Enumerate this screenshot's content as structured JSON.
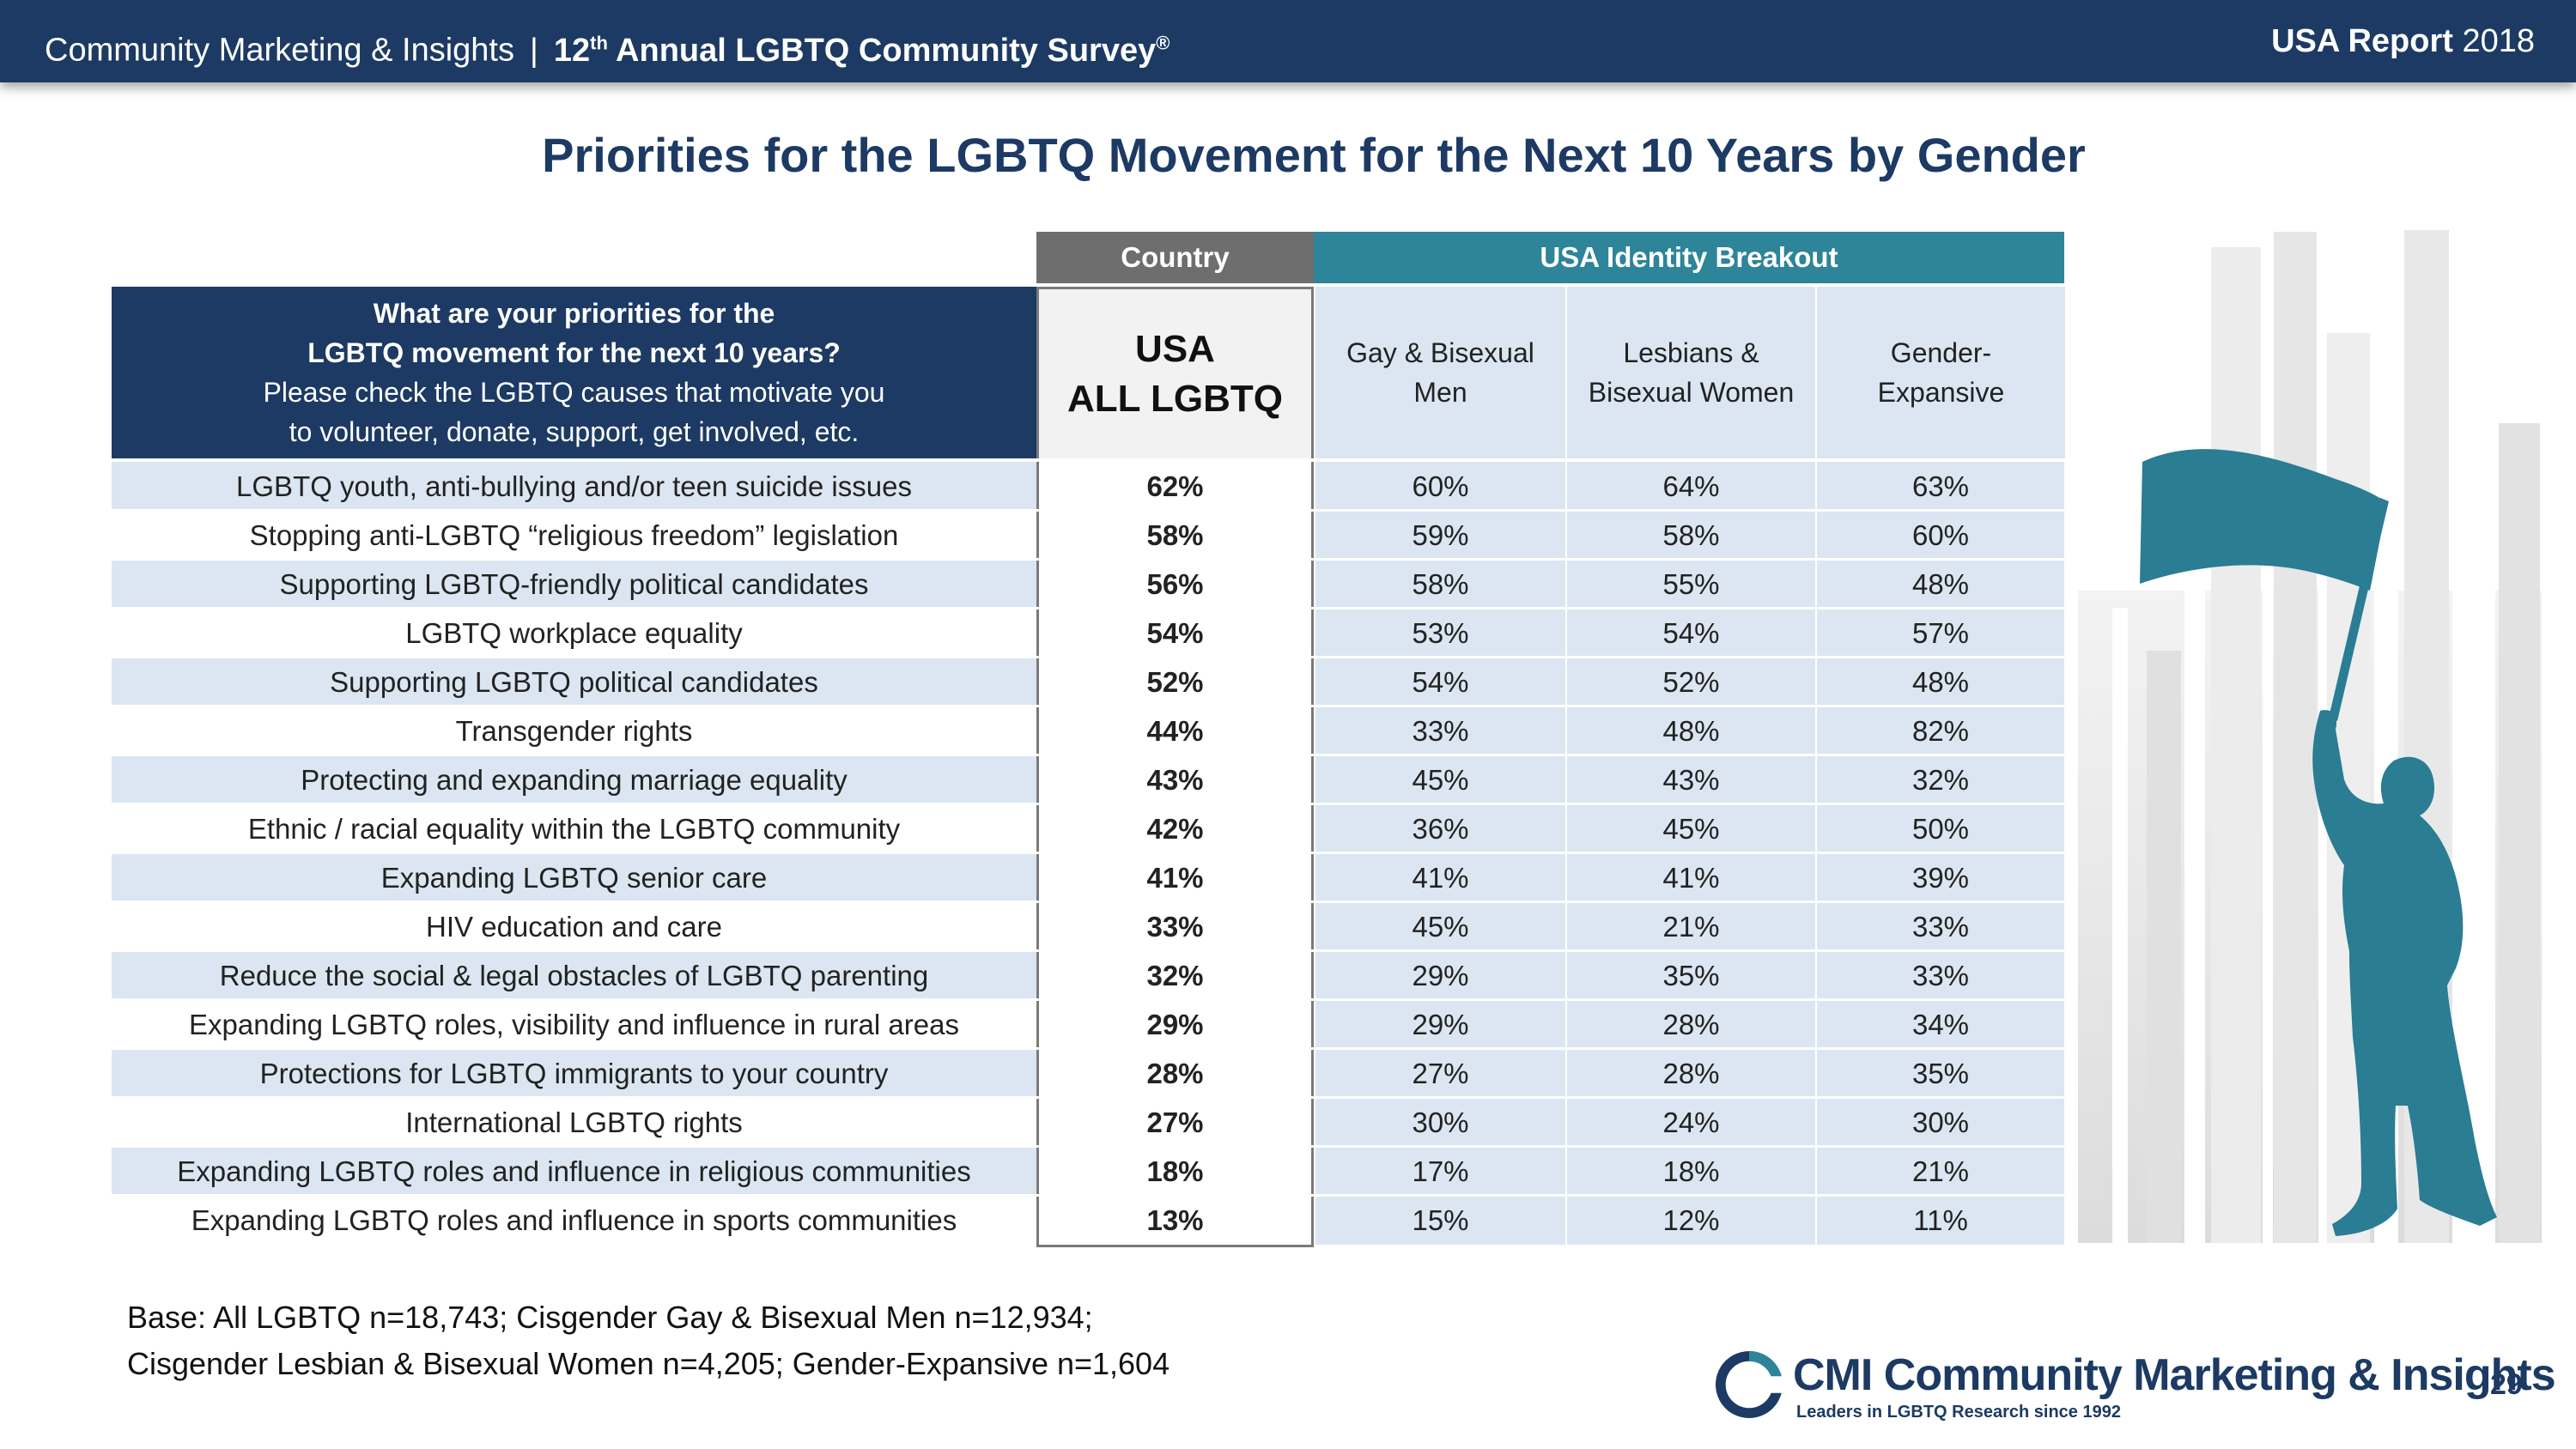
{
  "header": {
    "org": "Community Marketing & Insights",
    "separator": "|",
    "survey_prefix": "12",
    "survey_sup": "th",
    "survey_title": " Annual LGBTQ Community Survey",
    "survey_reg": "®",
    "report_bold": "USA Report",
    "report_year": " 2018"
  },
  "title": "Priorities for the LGBTQ Movement for the Next 10 Years by Gender",
  "table": {
    "group_country": "Country",
    "group_usa": "USA Identity Breakout",
    "question_line1": "What are your priorities for the",
    "question_line2": "LGBTQ movement for the next 10 years?",
    "question_line3": "Please check the LGBTQ causes that motivate you",
    "question_line4": "to volunteer, donate, support, get involved, etc.",
    "col_usa_line1": "USA",
    "col_usa_line2": "ALL LGBTQ",
    "col1_line1": "Gay & Bisexual",
    "col1_line2": "Men",
    "col2_line1": "Lesbians &",
    "col2_line2": "Bisexual Women",
    "col3_line1": "Gender-",
    "col3_line2": "Expansive",
    "rows": [
      {
        "label": "LGBTQ youth, anti-bullying and/or teen suicide issues",
        "usa": "62%",
        "men": "60%",
        "women": "64%",
        "ge": "63%"
      },
      {
        "label": "Stopping anti-LGBTQ “religious freedom” legislation",
        "usa": "58%",
        "men": "59%",
        "women": "58%",
        "ge": "60%"
      },
      {
        "label": "Supporting LGBTQ-friendly political candidates",
        "usa": "56%",
        "men": "58%",
        "women": "55%",
        "ge": "48%"
      },
      {
        "label": "LGBTQ workplace equality",
        "usa": "54%",
        "men": "53%",
        "women": "54%",
        "ge": "57%"
      },
      {
        "label": "Supporting LGBTQ political candidates",
        "usa": "52%",
        "men": "54%",
        "women": "52%",
        "ge": "48%"
      },
      {
        "label": "Transgender rights",
        "usa": "44%",
        "men": "33%",
        "women": "48%",
        "ge": "82%"
      },
      {
        "label": "Protecting and expanding marriage equality",
        "usa": "43%",
        "men": "45%",
        "women": "43%",
        "ge": "32%"
      },
      {
        "label": "Ethnic / racial equality within the LGBTQ community",
        "usa": "42%",
        "men": "36%",
        "women": "45%",
        "ge": "50%"
      },
      {
        "label": "Expanding LGBTQ senior care",
        "usa": "41%",
        "men": "41%",
        "women": "41%",
        "ge": "39%"
      },
      {
        "label": "HIV education and care",
        "usa": "33%",
        "men": "45%",
        "women": "21%",
        "ge": "33%"
      },
      {
        "label": "Reduce the social & legal obstacles of LGBTQ parenting",
        "usa": "32%",
        "men": "29%",
        "women": "35%",
        "ge": "33%"
      },
      {
        "label": "Expanding LGBTQ roles, visibility and influence in rural areas",
        "usa": "29%",
        "men": "29%",
        "women": "28%",
        "ge": "34%"
      },
      {
        "label": "Protections for LGBTQ immigrants to your country",
        "usa": "28%",
        "men": "27%",
        "women": "28%",
        "ge": "35%"
      },
      {
        "label": "International LGBTQ rights",
        "usa": "27%",
        "men": "30%",
        "women": "24%",
        "ge": "30%"
      },
      {
        "label": "Expanding LGBTQ roles and influence in religious communities",
        "usa": "18%",
        "men": "17%",
        "women": "18%",
        "ge": "21%"
      },
      {
        "label": "Expanding LGBTQ roles and influence in sports communities",
        "usa": "13%",
        "men": "15%",
        "women": "12%",
        "ge": "11%"
      }
    ]
  },
  "footer": {
    "base_line1": "Base: All LGBTQ n=18,743; Cisgender Gay & Bisexual Men n=12,934;",
    "base_line2": "Cisgender Lesbian & Bisexual Women n=4,205; Gender-Expansive n=1,604",
    "logo_abbr": "CMI",
    "logo_name": "Community Marketing & Insights",
    "logo_tagline": "Leaders in LGBTQ Research since 1992",
    "page_number": "29"
  },
  "colors": {
    "navy": "#1c3a63",
    "teal": "#2e8498",
    "gray": "#6e6e6e",
    "light_blue": "#dbe6f2"
  }
}
